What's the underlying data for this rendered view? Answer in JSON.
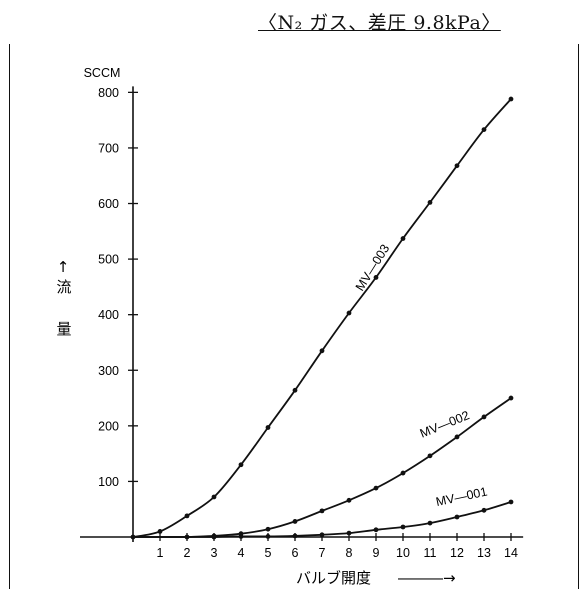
{
  "chart_data": {
    "type": "line",
    "title": "〈N₂ ガス、差圧 9.8kPa〉",
    "ylabel_unit": "SCCM",
    "ylabel": "流　量",
    "ylabel_arrow": "↑",
    "xlabel": "バルブ開度",
    "xlabel_arrow": "―――→",
    "x_ticks": [
      1,
      2,
      3,
      4,
      5,
      6,
      7,
      8,
      9,
      10,
      11,
      12,
      13,
      14
    ],
    "y_ticks": [
      100,
      200,
      300,
      400,
      500,
      600,
      700,
      800
    ],
    "xlim": [
      0,
      14.4
    ],
    "ylim": [
      0,
      800
    ],
    "grid": false,
    "series": [
      {
        "name": "MV-003",
        "x": [
          0,
          1,
          2,
          3,
          4,
          5,
          6,
          7,
          8,
          9,
          10,
          11,
          12,
          13,
          14
        ],
        "y": [
          0,
          10,
          38,
          72,
          130,
          197,
          264,
          335,
          403,
          467,
          537,
          602,
          668,
          733,
          788
        ]
      },
      {
        "name": "MV-002",
        "x": [
          2,
          3,
          4,
          5,
          6,
          7,
          8,
          9,
          10,
          11,
          12,
          13,
          14
        ],
        "y": [
          0,
          2,
          6,
          14,
          28,
          47,
          66,
          88,
          115,
          146,
          180,
          216,
          250
        ]
      },
      {
        "name": "MV-001",
        "x": [
          3,
          4,
          5,
          6,
          7,
          8,
          9,
          10,
          11,
          12,
          13,
          14
        ],
        "y": [
          0,
          1,
          1,
          2,
          4,
          7,
          13,
          18,
          25,
          36,
          48,
          63
        ]
      }
    ]
  }
}
